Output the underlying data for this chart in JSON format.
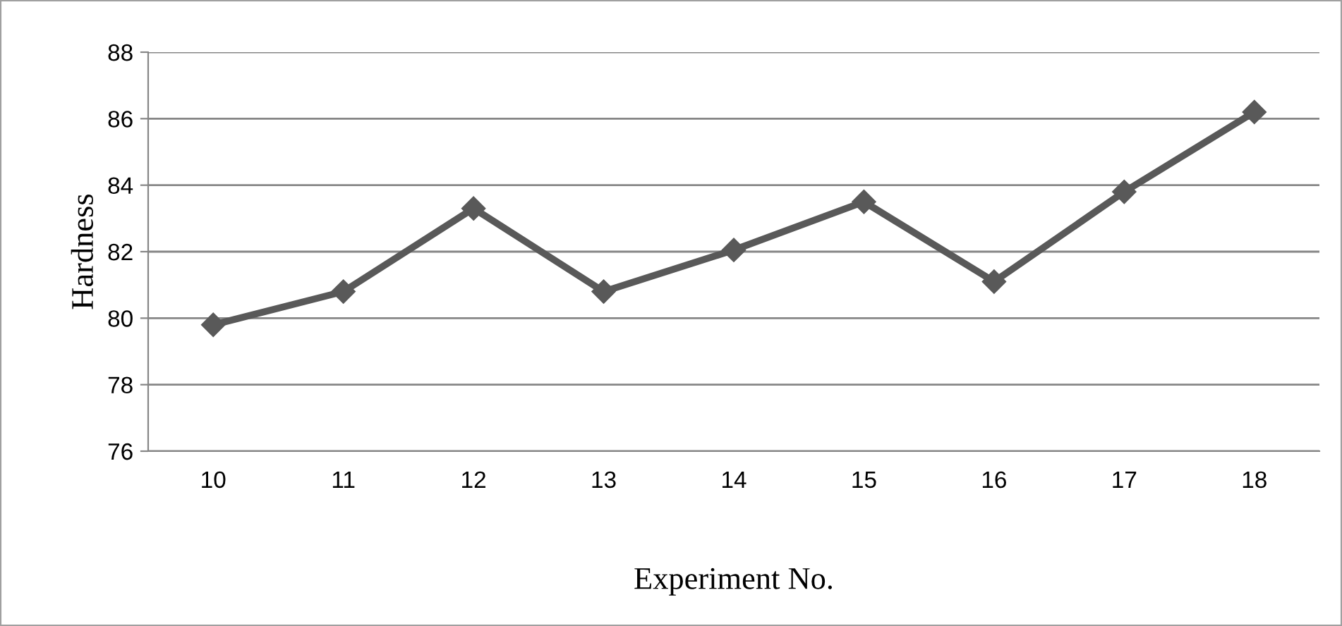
{
  "chart_data": {
    "type": "line",
    "xlabel": "Experiment No.",
    "ylabel": "Hardness",
    "categories": [
      "10",
      "11",
      "12",
      "13",
      "14",
      "15",
      "16",
      "17",
      "18"
    ],
    "series": [
      {
        "color": "#595959",
        "values": [
          79.8,
          80.8,
          83.3,
          80.8,
          82.05,
          83.5,
          81.1,
          83.8,
          86.2
        ]
      }
    ],
    "ylim": [
      76,
      88
    ],
    "yticks": [
      76,
      78,
      80,
      82,
      84,
      86,
      88
    ],
    "grid": "y",
    "marker": "diamond",
    "line_style": "solid",
    "legend": false
  }
}
